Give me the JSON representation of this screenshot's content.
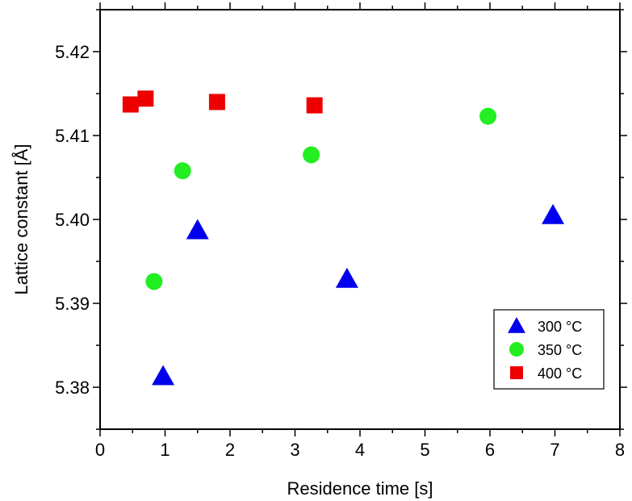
{
  "chart_data": {
    "type": "scatter",
    "xlabel": "Residence time [s]",
    "ylabel": "Lattice constant [Å]",
    "xlim": [
      0,
      8
    ],
    "ylim": [
      5.375,
      5.425
    ],
    "x_ticks": [
      "0",
      "1",
      "2",
      "3",
      "4",
      "5",
      "6",
      "7",
      "8"
    ],
    "y_ticks": [
      "5.38",
      "5.39",
      "5.40",
      "5.41",
      "5.42"
    ],
    "grid": false,
    "legend_position": "bottom-right",
    "series": [
      {
        "name": "300 °C",
        "marker": "triangle",
        "color": "#0000ee",
        "points": [
          [
            0.97,
            5.3813
          ],
          [
            1.5,
            5.3987
          ],
          [
            3.8,
            5.3929
          ],
          [
            6.97,
            5.4005
          ]
        ]
      },
      {
        "name": "350 °C",
        "marker": "circle",
        "color": "#22ee22",
        "points": [
          [
            0.83,
            5.3926
          ],
          [
            1.27,
            5.4058
          ],
          [
            3.25,
            5.4077
          ],
          [
            5.97,
            5.4123
          ]
        ]
      },
      {
        "name": "400 °C",
        "marker": "square",
        "color": "#ee0000",
        "points": [
          [
            0.47,
            5.4137
          ],
          [
            0.7,
            5.4144
          ],
          [
            1.8,
            5.414
          ],
          [
            3.3,
            5.4136
          ]
        ]
      }
    ]
  }
}
